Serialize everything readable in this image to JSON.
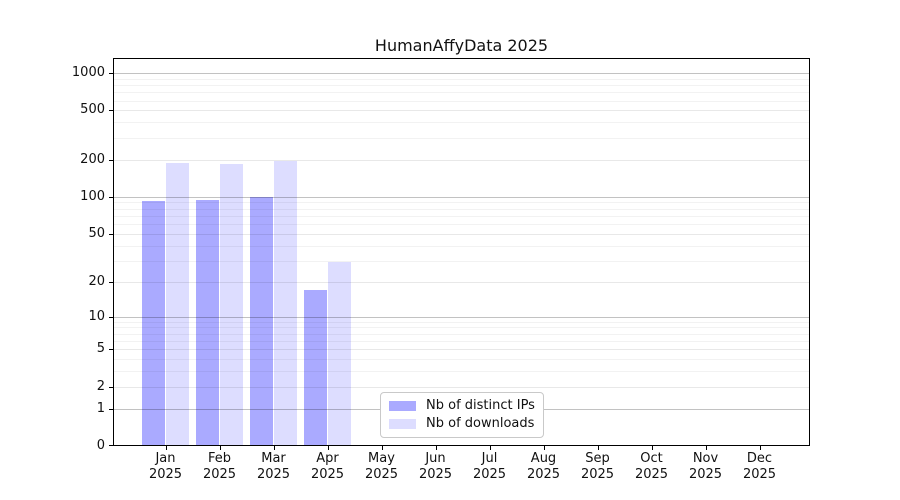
{
  "title": "HumanAffyData 2025",
  "chart_data": {
    "type": "bar",
    "title": "HumanAffyData 2025",
    "xlabel": "",
    "ylabel": "",
    "scale": "log10(1+x)",
    "grid": true,
    "legend_position": "bottom-center-inside",
    "categories": [
      {
        "month": "Jan",
        "year": "2025"
      },
      {
        "month": "Feb",
        "year": "2025"
      },
      {
        "month": "Mar",
        "year": "2025"
      },
      {
        "month": "Apr",
        "year": "2025"
      },
      {
        "month": "May",
        "year": "2025"
      },
      {
        "month": "Jun",
        "year": "2025"
      },
      {
        "month": "Jul",
        "year": "2025"
      },
      {
        "month": "Aug",
        "year": "2025"
      },
      {
        "month": "Sep",
        "year": "2025"
      },
      {
        "month": "Oct",
        "year": "2025"
      },
      {
        "month": "Nov",
        "year": "2025"
      },
      {
        "month": "Dec",
        "year": "2025"
      }
    ],
    "series": [
      {
        "name": "Nb of distinct IPs",
        "color": "#aaaaff",
        "values": [
          93,
          95,
          99,
          17,
          null,
          null,
          null,
          null,
          null,
          null,
          null,
          null
        ]
      },
      {
        "name": "Nb of downloads",
        "color": "#ddddff",
        "values": [
          188,
          183,
          196,
          29,
          null,
          null,
          null,
          null,
          null,
          null,
          null,
          null
        ]
      }
    ],
    "yticks": [
      0,
      1,
      2,
      5,
      10,
      20,
      50,
      100,
      200,
      500,
      1000
    ],
    "decade_yticks": [
      1,
      10,
      100,
      1000
    ],
    "minor_yticks": [
      3,
      4,
      6,
      7,
      8,
      9,
      30,
      40,
      60,
      70,
      80,
      90,
      300,
      400,
      600,
      700,
      800,
      900
    ],
    "ylim": [
      0,
      1320
    ],
    "grid_colors": {
      "decade": "rgba(0,0,0,0.24)",
      "major": "rgba(0,0,0,0.09)",
      "minor": "rgba(0,0,0,0.05)"
    }
  }
}
